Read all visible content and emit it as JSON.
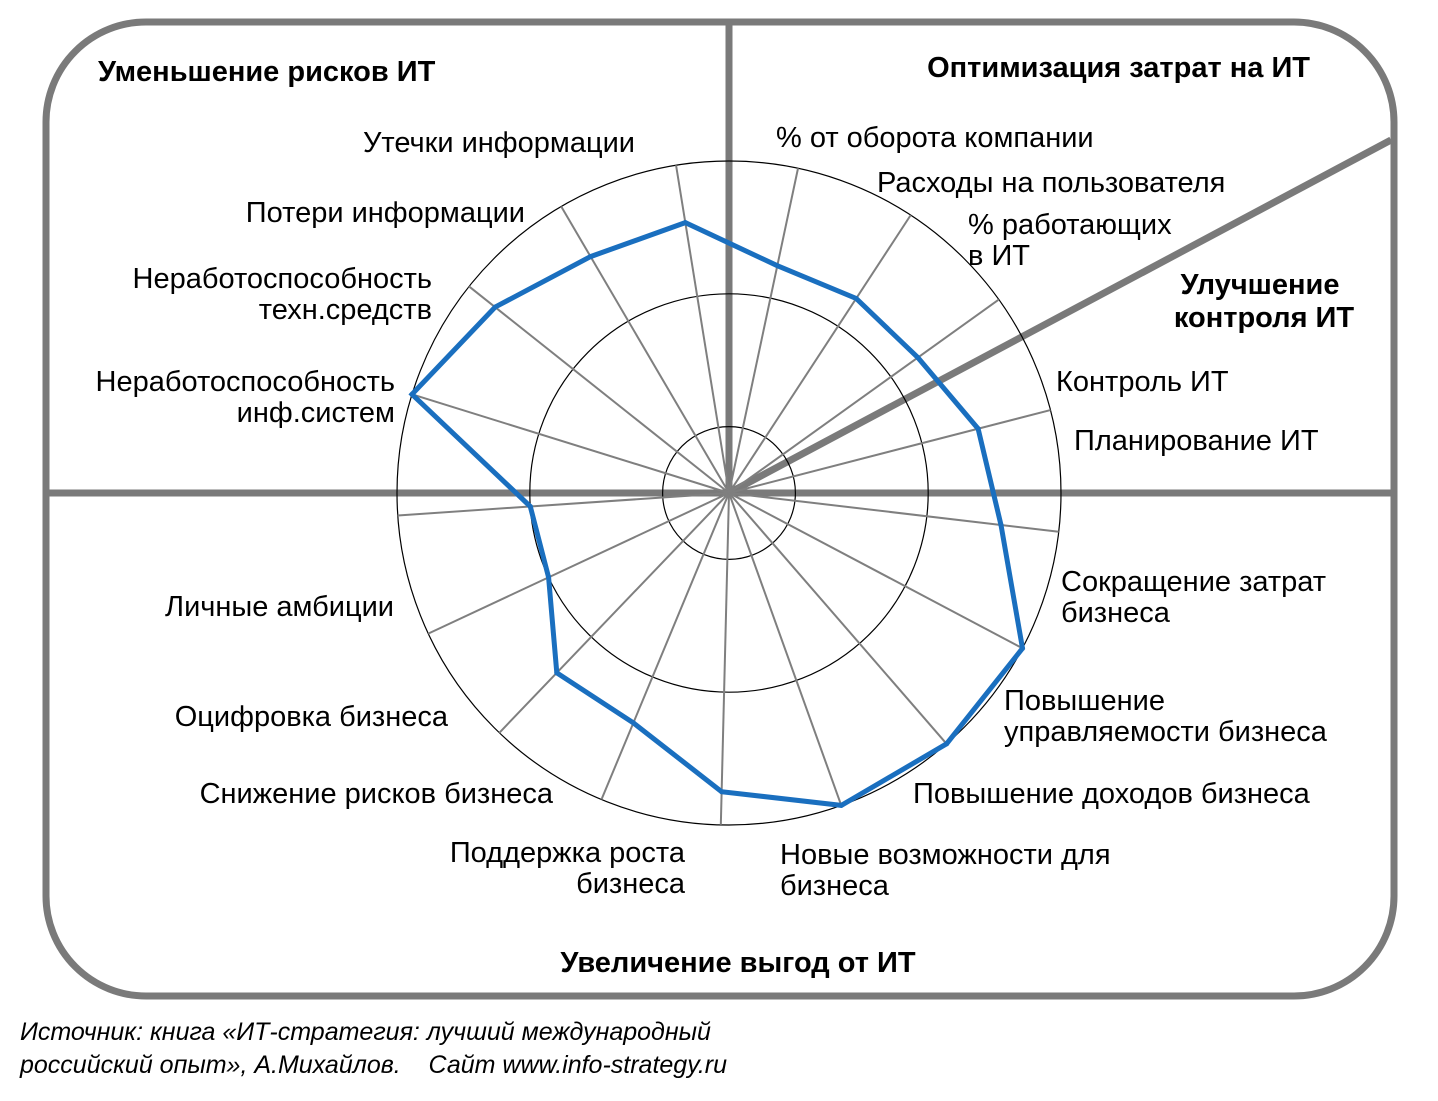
{
  "quadrants": {
    "top_left": "Уменьшение рисков ИТ",
    "top_right": "Оптимизация затрат на ИТ",
    "right": [
      "Улучшение",
      "контроля ИТ"
    ],
    "bottom": "Увеличение выгод от ИТ"
  },
  "chart_data": {
    "type": "radar",
    "rings": 4,
    "max": 4,
    "categories": [
      {
        "label": [
          "% от оборота компании"
        ],
        "value": 2.8
      },
      {
        "label": [
          "Расходы на пользователя"
        ],
        "value": 2.8
      },
      {
        "label": [
          "% работающих",
          "в ИТ"
        ],
        "value": 2.8
      },
      {
        "label": [
          "Контроль ИТ"
        ],
        "value": 3.1
      },
      {
        "label": [
          "Планирование ИТ"
        ],
        "value": 3.3
      },
      {
        "label": [
          "Сокращение затрат",
          "бизнеса"
        ],
        "value": 4.0
      },
      {
        "label": [
          "Повышение",
          "управляемости бизнеса"
        ],
        "value": 4.0
      },
      {
        "label": [
          "Повышение доходов бизнеса"
        ],
        "value": 4.0
      },
      {
        "label": [
          "Новые возможности для",
          "бизнеса"
        ],
        "value": 3.6
      },
      {
        "label": [
          "Поддержка роста",
          "бизнеса"
        ],
        "value": 3.0
      },
      {
        "label": [
          "Снижение рисков бизнеса"
        ],
        "value": 3.0
      },
      {
        "label": [
          "Оцифровка бизнеса"
        ],
        "value": 2.4
      },
      {
        "label": [
          "Личные амбиции"
        ],
        "value": 2.4
      },
      {
        "label": [
          "Неработоспособность",
          "инф.систем"
        ],
        "value": 4.0
      },
      {
        "label": [
          "Неработоспособность",
          "техн.средств"
        ],
        "value": 3.6
      },
      {
        "label": [
          "Потери информации"
        ],
        "value": 3.3
      },
      {
        "label": [
          "Утечки информации"
        ],
        "value": 3.3
      }
    ],
    "series_color": "#1a6fbf"
  },
  "source": {
    "line1": "Источник: книга «ИТ-стратегия: лучший международный",
    "line2": "российский опыт», А.Михайлов.    Сайт www.info-strategy.ru"
  }
}
